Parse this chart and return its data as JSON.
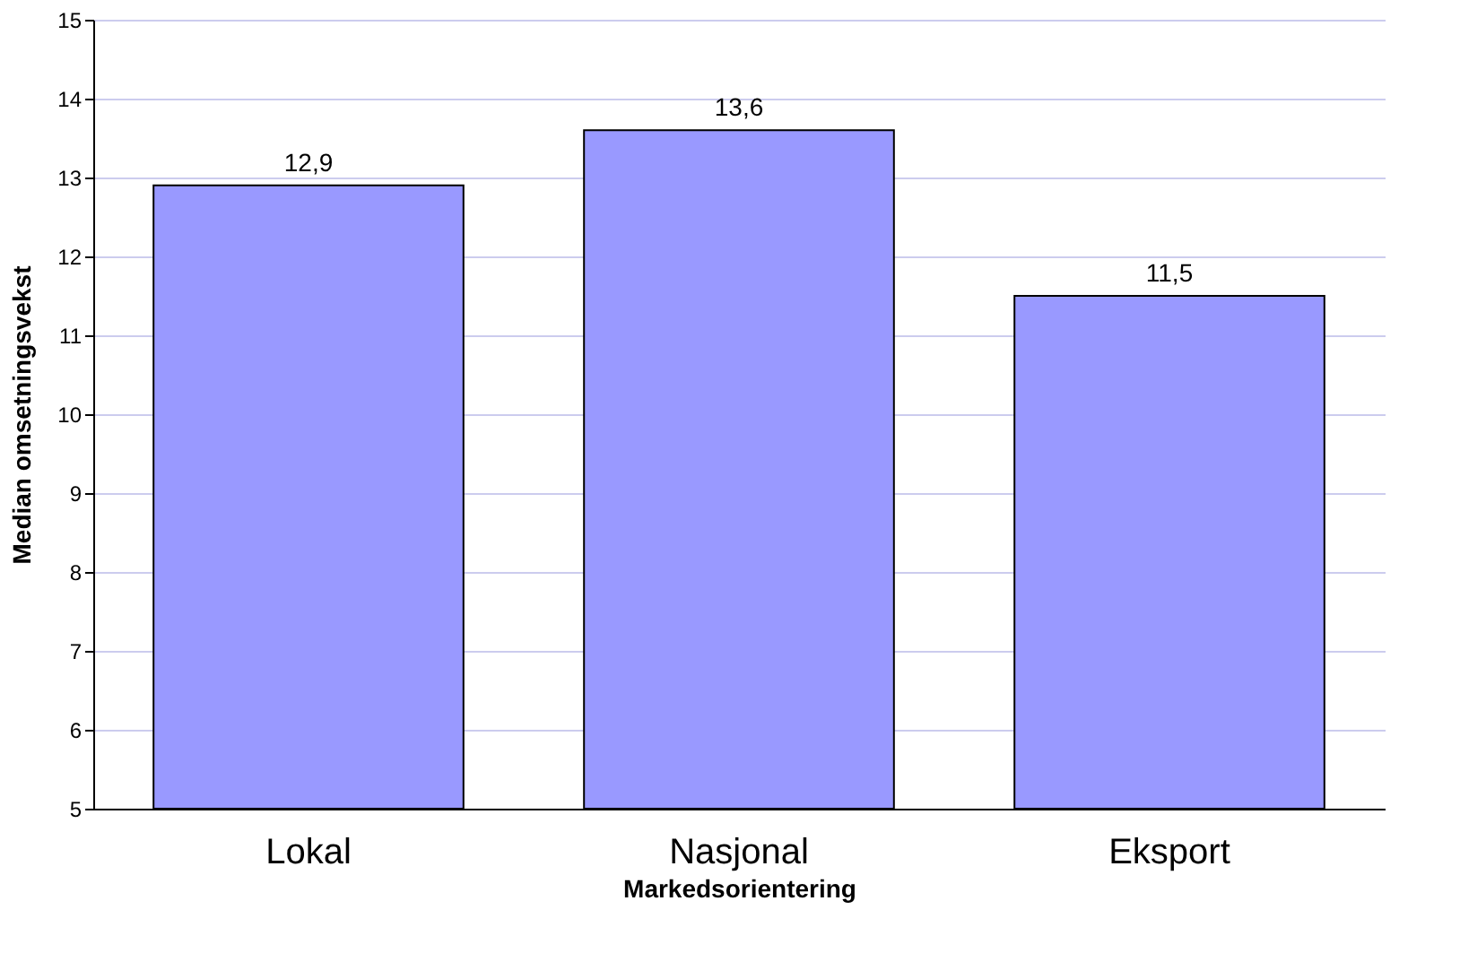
{
  "chart_data": {
    "type": "bar",
    "xlabel": "Markedsorientering",
    "ylabel": "Median omsetningsvekst",
    "categories": [
      "Lokal",
      "Nasjonal",
      "Eksport"
    ],
    "values": [
      12.9,
      13.6,
      11.5
    ],
    "value_labels": [
      "12,9",
      "13,6",
      "11,5"
    ],
    "color": "#9999ff",
    "ylim": [
      5,
      15
    ],
    "yticks": [
      5,
      6,
      7,
      8,
      9,
      10,
      11,
      12,
      13,
      14,
      15
    ],
    "grid": "y"
  }
}
